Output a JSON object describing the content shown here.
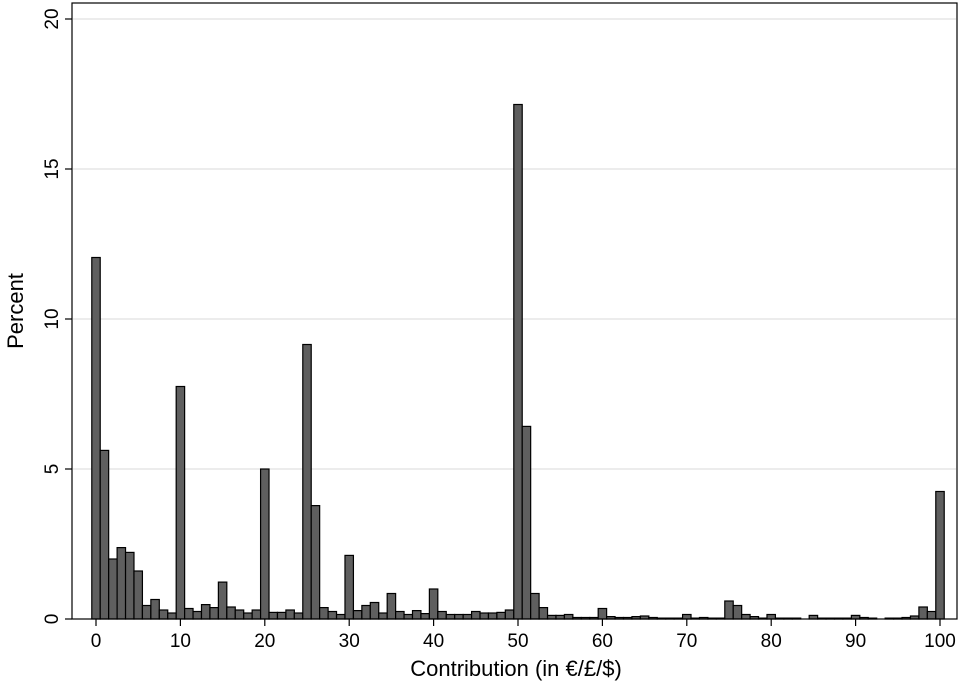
{
  "chart_data": {
    "type": "bar",
    "xlabel": "Contribution (in €/£/$)",
    "ylabel": "Percent",
    "xlim": [
      0,
      100
    ],
    "ylim": [
      0,
      20
    ],
    "x_ticks": [
      "0",
      "10",
      "20",
      "30",
      "40",
      "50",
      "60",
      "70",
      "80",
      "90",
      "100"
    ],
    "y_ticks": [
      "0",
      "5",
      "10",
      "15",
      "20"
    ],
    "grid": "horizontal",
    "bar_color": "#5f5f5f",
    "series": [
      {
        "x": [
          0,
          1,
          2,
          3,
          4,
          5,
          6,
          7,
          8,
          9,
          10,
          11,
          12,
          13,
          14,
          15,
          16,
          17,
          18,
          19,
          20,
          21,
          22,
          23,
          24,
          25,
          26,
          27,
          28,
          29,
          30,
          31,
          32,
          33,
          34,
          35,
          36,
          37,
          38,
          39,
          40,
          41,
          42,
          43,
          44,
          45,
          46,
          47,
          48,
          49,
          50,
          51,
          52,
          53,
          54,
          55,
          56,
          57,
          58,
          59,
          60,
          61,
          62,
          63,
          64,
          65,
          66,
          67,
          68,
          69,
          70,
          71,
          72,
          73,
          74,
          75,
          76,
          77,
          78,
          79,
          80,
          81,
          82,
          83,
          84,
          85,
          86,
          87,
          88,
          89,
          90,
          91,
          92,
          93,
          94,
          95,
          96,
          97,
          98,
          99,
          100
        ],
        "values": [
          12.05,
          5.62,
          2.0,
          2.38,
          2.22,
          1.6,
          0.45,
          0.65,
          0.3,
          0.2,
          7.75,
          0.35,
          0.25,
          0.48,
          0.38,
          1.23,
          0.4,
          0.3,
          0.2,
          0.3,
          5.0,
          0.22,
          0.22,
          0.3,
          0.2,
          9.15,
          3.78,
          0.38,
          0.25,
          0.15,
          2.12,
          0.28,
          0.45,
          0.55,
          0.2,
          0.85,
          0.25,
          0.15,
          0.28,
          0.18,
          1.0,
          0.25,
          0.15,
          0.15,
          0.15,
          0.25,
          0.2,
          0.2,
          0.22,
          0.3,
          17.15,
          6.42,
          0.85,
          0.38,
          0.12,
          0.12,
          0.15,
          0.05,
          0.05,
          0.05,
          0.35,
          0.08,
          0.05,
          0.05,
          0.08,
          0.1,
          0.05,
          0.03,
          0.03,
          0.03,
          0.15,
          0.03,
          0.05,
          0.03,
          0.03,
          0.6,
          0.45,
          0.15,
          0.08,
          0.03,
          0.15,
          0.03,
          0.03,
          0.03,
          0.0,
          0.12,
          0.03,
          0.03,
          0.03,
          0.03,
          0.12,
          0.05,
          0.03,
          0.0,
          0.03,
          0.03,
          0.05,
          0.1,
          0.4,
          0.25,
          4.25
        ]
      }
    ]
  }
}
